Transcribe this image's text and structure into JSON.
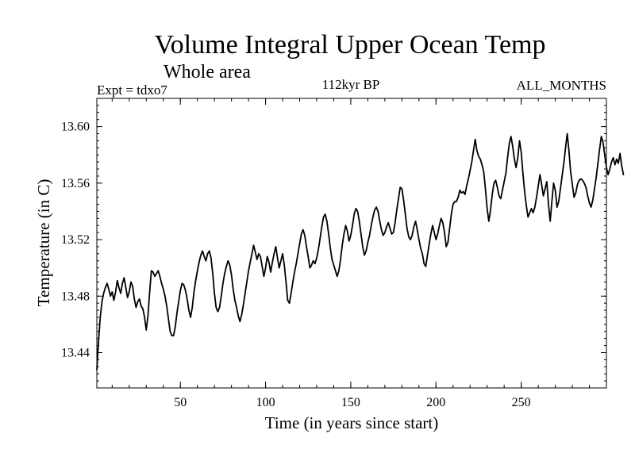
{
  "chart_data": {
    "type": "line",
    "title": "Volume Integral Upper Ocean Temp",
    "subtitle": "Whole area",
    "experiment_label": "Expt = tdxo7",
    "period_label": "112kyr BP",
    "months_label": "ALL_MONTHS",
    "xlabel": "Time (in years since start)",
    "ylabel": "Temperature (in C)",
    "xlim": [
      1,
      300
    ],
    "ylim": [
      13.415,
      13.62
    ],
    "x_ticks": [
      50,
      100,
      150,
      200,
      250
    ],
    "x_tick_labels": [
      "50",
      "100",
      "150",
      "200",
      "250"
    ],
    "y_ticks": [
      13.44,
      13.48,
      13.52,
      13.56,
      13.6
    ],
    "y_tick_labels": [
      "13.44",
      "13.48",
      "13.52",
      "13.56",
      "13.60"
    ],
    "grid": false,
    "series": [
      {
        "color": "#000000",
        "x_start": 1,
        "x_step": 1,
        "values": [
          13.428,
          13.448,
          13.465,
          13.476,
          13.482,
          13.486,
          13.489,
          13.485,
          13.48,
          13.483,
          13.477,
          13.483,
          13.491,
          13.486,
          13.482,
          13.489,
          13.493,
          13.486,
          13.479,
          13.483,
          13.49,
          13.487,
          13.478,
          13.472,
          13.476,
          13.478,
          13.473,
          13.471,
          13.465,
          13.456,
          13.466,
          13.483,
          13.498,
          13.497,
          13.494,
          13.496,
          13.498,
          13.494,
          13.489,
          13.485,
          13.48,
          13.473,
          13.464,
          13.455,
          13.452,
          13.452,
          13.458,
          13.468,
          13.476,
          13.484,
          13.489,
          13.488,
          13.484,
          13.478,
          13.47,
          13.465,
          13.472,
          13.483,
          13.491,
          13.498,
          13.504,
          13.509,
          13.512,
          13.508,
          13.505,
          13.51,
          13.512,
          13.507,
          13.496,
          13.482,
          13.472,
          13.469,
          13.472,
          13.48,
          13.489,
          13.496,
          13.501,
          13.505,
          13.502,
          13.495,
          13.485,
          13.477,
          13.472,
          13.466,
          13.462,
          13.467,
          13.474,
          13.482,
          13.49,
          13.498,
          13.504,
          13.51,
          13.516,
          13.511,
          13.506,
          13.51,
          13.508,
          13.501,
          13.494,
          13.5,
          13.508,
          13.504,
          13.497,
          13.504,
          13.51,
          13.515,
          13.507,
          13.5,
          13.505,
          13.51,
          13.502,
          13.49,
          13.477,
          13.475,
          13.482,
          13.49,
          13.497,
          13.503,
          13.51,
          13.517,
          13.524,
          13.527,
          13.523,
          13.515,
          13.508,
          13.5,
          13.502,
          13.505,
          13.503,
          13.507,
          13.513,
          13.521,
          13.529,
          13.536,
          13.538,
          13.533,
          13.524,
          13.514,
          13.506,
          13.502,
          13.498,
          13.494,
          13.498,
          13.506,
          13.516,
          13.524,
          13.53,
          13.526,
          13.519,
          13.523,
          13.53,
          13.538,
          13.542,
          13.54,
          13.533,
          13.524,
          13.515,
          13.509,
          13.512,
          13.518,
          13.523,
          13.53,
          13.536,
          13.541,
          13.543,
          13.54,
          13.533,
          13.527,
          13.523,
          13.525,
          13.529,
          13.532,
          13.528,
          13.524,
          13.525,
          13.532,
          13.541,
          13.549,
          13.557,
          13.556,
          13.548,
          13.538,
          13.528,
          13.522,
          13.52,
          13.523,
          13.529,
          13.533,
          13.527,
          13.52,
          13.514,
          13.51,
          13.503,
          13.501,
          13.509,
          13.517,
          13.524,
          13.53,
          13.525,
          13.52,
          13.524,
          13.53,
          13.535,
          13.532,
          13.525,
          13.515,
          13.518,
          13.528,
          13.538,
          13.545,
          13.547,
          13.547,
          13.55,
          13.555,
          13.553,
          13.554,
          13.552,
          13.558,
          13.563,
          13.569,
          13.575,
          13.583,
          13.591,
          13.583,
          13.579,
          13.577,
          13.573,
          13.568,
          13.556,
          13.542,
          13.533,
          13.541,
          13.552,
          13.56,
          13.562,
          13.557,
          13.551,
          13.549,
          13.555,
          13.561,
          13.567,
          13.578,
          13.588,
          13.593,
          13.586,
          13.577,
          13.571,
          13.578,
          13.59,
          13.582,
          13.567,
          13.554,
          13.544,
          13.536,
          13.539,
          13.542,
          13.539,
          13.543,
          13.55,
          13.558,
          13.566,
          13.559,
          13.551,
          13.556,
          13.561,
          13.545,
          13.533,
          13.547,
          13.56,
          13.555,
          13.543,
          13.547,
          13.556,
          13.565,
          13.574,
          13.585,
          13.595,
          13.583,
          13.568,
          13.559,
          13.55,
          13.553,
          13.559,
          13.562,
          13.563,
          13.562,
          13.56,
          13.557,
          13.551,
          13.546,
          13.543,
          13.548,
          13.556,
          13.564,
          13.574,
          13.584,
          13.593,
          13.589,
          13.58,
          13.571,
          13.566,
          13.57,
          13.575,
          13.578,
          13.573,
          13.577,
          13.574,
          13.581,
          13.572,
          13.566
        ]
      }
    ]
  }
}
